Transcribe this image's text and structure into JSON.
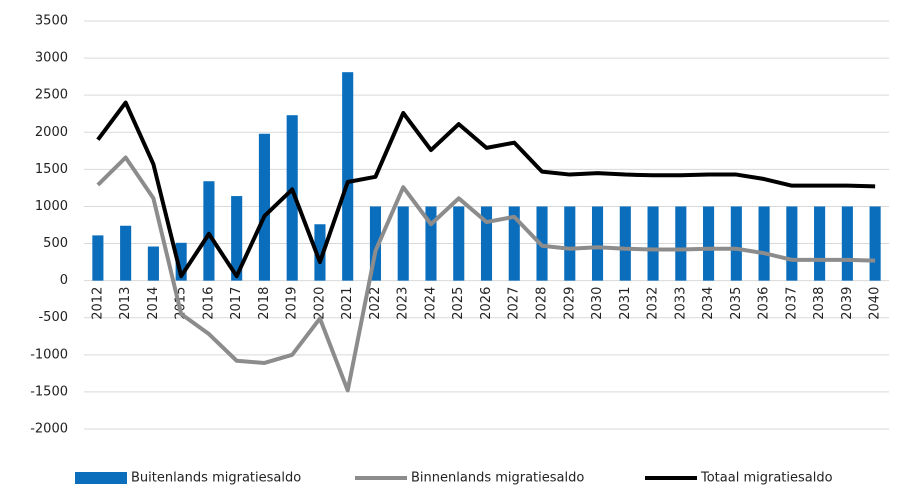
{
  "chart_data": {
    "type": "bar_line",
    "categories": [
      "2012",
      "2013",
      "2014",
      "2015",
      "2016",
      "2017",
      "2018",
      "2019",
      "2020",
      "2021",
      "2022",
      "2023",
      "2024",
      "2025",
      "2026",
      "2027",
      "2028",
      "2029",
      "2030",
      "2031",
      "2032",
      "2033",
      "2034",
      "2035",
      "2036",
      "2037",
      "2038",
      "2039",
      "2040"
    ],
    "series": [
      {
        "name": "Buitenlands migratiesaldo",
        "type": "bar",
        "color": "#0a6ebd",
        "values": [
          610,
          740,
          460,
          510,
          1340,
          1140,
          1980,
          2230,
          760,
          2810,
          1000,
          1000,
          1000,
          1000,
          1000,
          1000,
          1000,
          1000,
          1000,
          1000,
          1000,
          1000,
          1000,
          1000,
          1000,
          1000,
          1000,
          1000,
          1000
        ]
      },
      {
        "name": "Binnenlands migratiesaldo",
        "type": "line",
        "color": "#8c8c8c",
        "values": [
          1290,
          1660,
          1110,
          -450,
          -720,
          -1080,
          -1110,
          -1000,
          -510,
          -1480,
          400,
          1260,
          760,
          1110,
          790,
          860,
          470,
          430,
          450,
          430,
          420,
          420,
          430,
          430,
          370,
          280,
          280,
          280,
          270
        ]
      },
      {
        "name": "Totaal migratiesaldo",
        "type": "line",
        "color": "#000000",
        "values": [
          1900,
          2400,
          1570,
          60,
          630,
          60,
          870,
          1230,
          250,
          1330,
          1400,
          2260,
          1760,
          2110,
          1790,
          1860,
          1470,
          1430,
          1450,
          1430,
          1420,
          1420,
          1430,
          1430,
          1370,
          1280,
          1280,
          1280,
          1270
        ]
      }
    ],
    "ylim": [
      -2000,
      3500
    ],
    "yticks": [
      -2000,
      -1500,
      -1000,
      -500,
      0,
      500,
      1000,
      1500,
      2000,
      2500,
      3000,
      3500
    ],
    "grid": true
  }
}
